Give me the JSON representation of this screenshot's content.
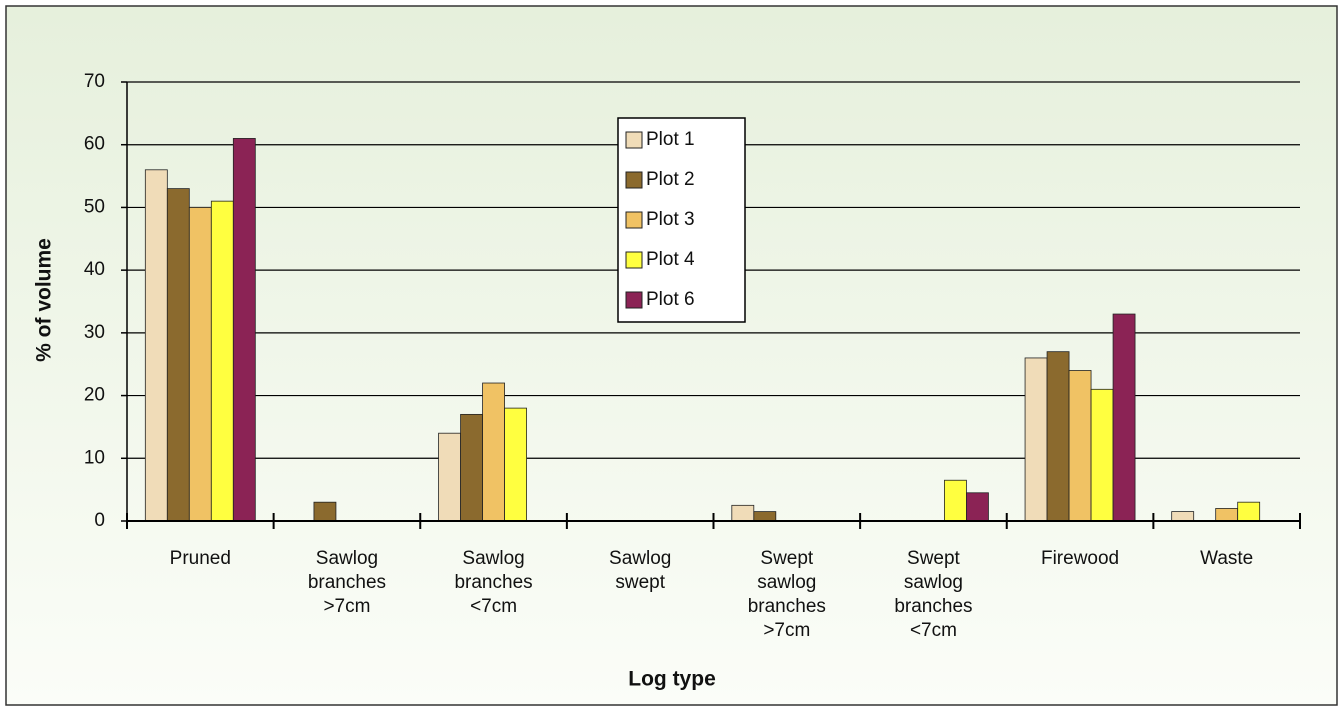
{
  "chart_data": {
    "type": "bar",
    "x_label": "Log type",
    "y_label": "% of volume",
    "categories": [
      "Pruned",
      "Sawlog\nbranches\n>7cm",
      "Sawlog\nbranches\n<7cm",
      "Sawlog\nswept",
      "Swept\nsawlog\nbranches\n>7cm",
      "Swept\nsawlog\nbranches\n<7cm",
      "Firewood",
      "Waste"
    ],
    "series": [
      {
        "name": "Plot 1",
        "color": "#f0dcb8",
        "values": [
          56,
          0,
          14,
          0,
          2.5,
          0,
          26,
          1.5
        ]
      },
      {
        "name": "Plot 2",
        "color": "#8b6a2e",
        "values": [
          53,
          3,
          17,
          0,
          1.5,
          0,
          27,
          0
        ]
      },
      {
        "name": "Plot 3",
        "color": "#f0c264",
        "values": [
          50,
          0,
          22,
          0,
          0,
          0,
          24,
          2
        ]
      },
      {
        "name": "Plot 4",
        "color": "#ffff40",
        "values": [
          51,
          0,
          18,
          0,
          0,
          6.5,
          21,
          3
        ]
      },
      {
        "name": "Plot 6",
        "color": "#8b2355",
        "values": [
          61,
          0,
          0,
          0,
          0,
          4.5,
          33,
          0
        ]
      }
    ],
    "ylim": [
      0,
      70
    ],
    "yticks": [
      0,
      10,
      20,
      30,
      40,
      50,
      60,
      70
    ],
    "grid": true,
    "legend": "top"
  }
}
